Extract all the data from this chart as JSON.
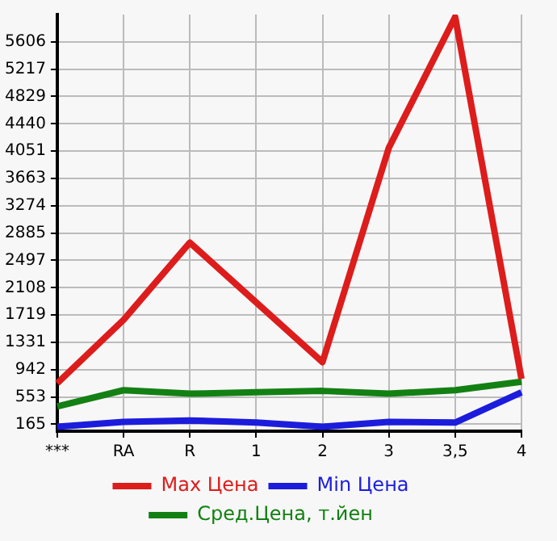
{
  "chart_data": {
    "type": "line",
    "categories": [
      "***",
      "RA",
      "R",
      "1",
      "2",
      "3",
      "3,5",
      "4"
    ],
    "series": [
      {
        "name": "Max Цена",
        "color": "#dd1c1c",
        "values": [
          750,
          1650,
          2750,
          1900,
          1050,
          4100,
          5960,
          810
        ]
      },
      {
        "name": "Min Цена",
        "color": "#1c1cdd",
        "values": [
          130,
          200,
          220,
          190,
          130,
          200,
          190,
          620
        ]
      },
      {
        "name": "Сред.Цена, т.йен",
        "color": "#138013",
        "values": [
          420,
          650,
          600,
          620,
          640,
          600,
          650,
          770
        ]
      }
    ],
    "ylim": [
      67,
      5995
    ],
    "yticks": [
      165,
      553,
      942,
      1331,
      1719,
      2108,
      2497,
      2885,
      3274,
      3663,
      4051,
      4440,
      4829,
      5217,
      5606
    ],
    "grid": true,
    "legend": "bottom",
    "marker": "none",
    "line_style": "solid"
  }
}
